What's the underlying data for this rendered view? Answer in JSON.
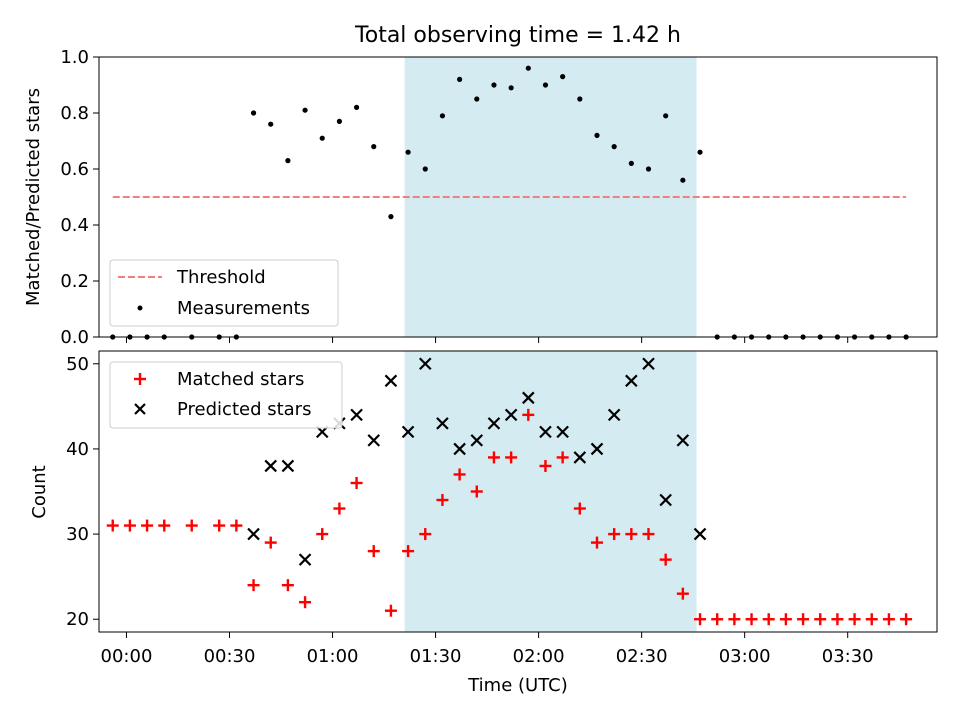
{
  "chart_data": [
    {
      "type": "scatter",
      "title": "Total observing time = 1.42 h",
      "xlabel": "",
      "ylabel": "Matched/Predicted stars",
      "xlim": [
        "-00:08",
        "03:56"
      ],
      "ylim": [
        0,
        1.0
      ],
      "yticks": [
        0.0,
        0.2,
        0.4,
        0.6,
        0.8,
        1.0
      ],
      "ytick_labels": [
        "0.0",
        "0.2",
        "0.4",
        "0.6",
        "0.8",
        "1.0"
      ],
      "highlight_span": [
        "01:21",
        "02:46"
      ],
      "highlight_color": "#add8e6",
      "legend": {
        "placement": "lower-left",
        "entries": [
          {
            "label": "Threshold",
            "style": "dashed-line",
            "color": "#f08080"
          },
          {
            "label": "Measurements",
            "style": "dot",
            "color": "#000000"
          }
        ]
      },
      "threshold": {
        "name": "Threshold",
        "value": 0.5,
        "x_range": [
          "-00:04",
          "03:47"
        ],
        "color": "#f08080"
      },
      "series": [
        {
          "name": "Measurements",
          "color": "#000000",
          "x": [
            "-00:04",
            "00:01",
            "00:06",
            "00:11",
            "00:19",
            "00:27",
            "00:32",
            "00:37",
            "00:42",
            "00:47",
            "00:52",
            "00:57",
            "01:02",
            "01:07",
            "01:12",
            "01:17",
            "01:22",
            "01:27",
            "01:32",
            "01:37",
            "01:42",
            "01:47",
            "01:52",
            "01:57",
            "02:02",
            "02:07",
            "02:12",
            "02:17",
            "02:22",
            "02:27",
            "02:32",
            "02:37",
            "02:42",
            "02:47",
            "02:52",
            "02:57",
            "03:02",
            "03:07",
            "03:12",
            "03:17",
            "03:22",
            "03:27",
            "03:32",
            "03:37",
            "03:42",
            "03:47"
          ],
          "y": [
            0,
            0,
            0,
            0,
            0,
            0,
            0,
            0.8,
            0.76,
            0.63,
            0.81,
            0.71,
            0.77,
            0.82,
            0.68,
            0.43,
            0.66,
            0.6,
            0.79,
            0.92,
            0.85,
            0.9,
            0.89,
            0.96,
            0.9,
            0.93,
            0.85,
            0.72,
            0.68,
            0.62,
            0.6,
            0.79,
            0.56,
            0.66,
            0,
            0,
            0,
            0,
            0,
            0,
            0,
            0,
            0,
            0,
            0,
            0
          ]
        }
      ]
    },
    {
      "type": "scatter",
      "title": "",
      "xlabel": "Time (UTC)",
      "ylabel": "Count",
      "xlim": [
        "-00:08",
        "03:56"
      ],
      "ylim": [
        18.5,
        51.5
      ],
      "yticks": [
        20,
        30,
        40,
        50
      ],
      "ytick_labels": [
        "20",
        "30",
        "40",
        "50"
      ],
      "xticks": [
        "00:00",
        "00:30",
        "01:00",
        "01:30",
        "02:00",
        "02:30",
        "03:00",
        "03:30"
      ],
      "xtick_labels": [
        "00:00",
        "00:30",
        "01:00",
        "01:30",
        "02:00",
        "02:30",
        "03:00",
        "03:30"
      ],
      "highlight_span": [
        "01:21",
        "02:46"
      ],
      "highlight_color": "#add8e6",
      "legend": {
        "placement": "top-left",
        "entries": [
          {
            "label": "Matched stars",
            "style": "plus",
            "color": "#ff0000"
          },
          {
            "label": "Predicted stars",
            "style": "x",
            "color": "#000000"
          }
        ]
      },
      "series": [
        {
          "name": "Matched stars",
          "marker": "plus",
          "color": "#ff0000",
          "x": [
            "-00:04",
            "00:01",
            "00:06",
            "00:11",
            "00:19",
            "00:27",
            "00:32",
            "00:37",
            "00:42",
            "00:47",
            "00:52",
            "00:57",
            "01:02",
            "01:07",
            "01:12",
            "01:17",
            "01:22",
            "01:27",
            "01:32",
            "01:37",
            "01:42",
            "01:47",
            "01:52",
            "01:57",
            "02:02",
            "02:07",
            "02:12",
            "02:17",
            "02:22",
            "02:27",
            "02:32",
            "02:37",
            "02:42",
            "02:47",
            "02:52",
            "02:57",
            "03:02",
            "03:07",
            "03:12",
            "03:17",
            "03:22",
            "03:27",
            "03:32",
            "03:37",
            "03:42",
            "03:47"
          ],
          "y": [
            31,
            31,
            31,
            31,
            31,
            31,
            31,
            24,
            29,
            24,
            22,
            30,
            33,
            36,
            28,
            21,
            28,
            30,
            34,
            37,
            35,
            39,
            39,
            44,
            38,
            39,
            33,
            29,
            30,
            30,
            30,
            27,
            23,
            20,
            20,
            20,
            20,
            20,
            20,
            20,
            20,
            20,
            20,
            20,
            20,
            20
          ]
        },
        {
          "name": "Predicted stars",
          "marker": "x",
          "color": "#000000",
          "x": [
            "00:37",
            "00:42",
            "00:47",
            "00:52",
            "00:57",
            "01:02",
            "01:07",
            "01:12",
            "01:17",
            "01:22",
            "01:27",
            "01:32",
            "01:37",
            "01:42",
            "01:47",
            "01:52",
            "01:57",
            "02:02",
            "02:07",
            "02:12",
            "02:17",
            "02:22",
            "02:27",
            "02:32",
            "02:37",
            "02:42",
            "02:47"
          ],
          "y": [
            30,
            38,
            38,
            27,
            42,
            43,
            44,
            41,
            48,
            42,
            50,
            43,
            40,
            41,
            43,
            44,
            46,
            42,
            42,
            39,
            40,
            44,
            48,
            50,
            34,
            41,
            30
          ]
        }
      ]
    }
  ]
}
